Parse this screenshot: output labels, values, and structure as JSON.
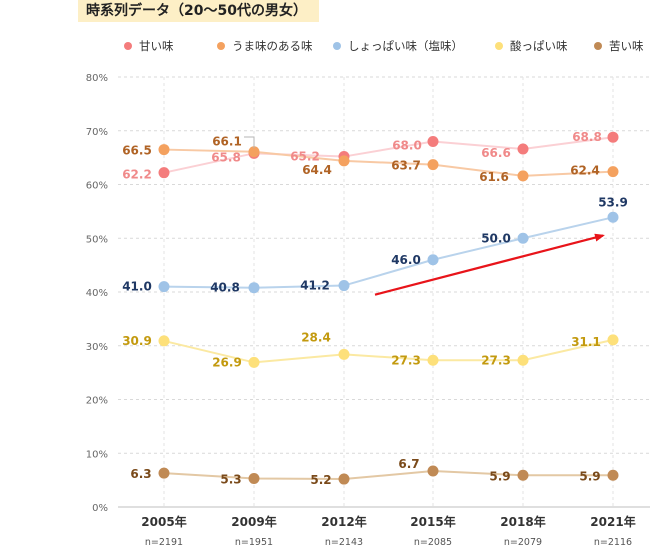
{
  "title": "時系列データ（20〜50代の男女）",
  "chart_data": {
    "type": "line",
    "categories": [
      "2005年",
      "2009年",
      "2012年",
      "2015年",
      "2018年",
      "2021年"
    ],
    "sample_sizes": [
      "n=2191",
      "n=1951",
      "n=2143",
      "n=2085",
      "n=2079",
      "n=2116"
    ],
    "ylim": [
      0,
      80
    ],
    "yticks": [
      "0%",
      "10%",
      "20%",
      "30%",
      "40%",
      "50%",
      "60%",
      "70%",
      "80%"
    ],
    "grid": true,
    "legend_position": "top",
    "series": [
      {
        "name": "甘い味",
        "values": [
          62.2,
          65.8,
          65.2,
          68.0,
          66.6,
          68.8
        ],
        "labels": [
          "62.2",
          "65.8",
          "65.2",
          "68.0",
          "66.6",
          "68.8"
        ],
        "color": "#f47c7c",
        "line_color": "#fbd0d4",
        "label_color": "#f08a8a"
      },
      {
        "name": "うま味のある味",
        "values": [
          66.5,
          66.1,
          64.4,
          63.7,
          61.6,
          62.4
        ],
        "labels": [
          "66.5",
          "66.1",
          "64.4",
          "63.7",
          "61.6",
          "62.4"
        ],
        "color": "#f4a15f",
        "line_color": "#f8c9a4",
        "label_color": "#b06325"
      },
      {
        "name": "しょっぱい味（塩味）",
        "values": [
          41.0,
          40.8,
          41.2,
          46.0,
          50.0,
          53.9
        ],
        "labels": [
          "41.0",
          "40.8",
          "41.2",
          "46.0",
          "50.0",
          "53.9"
        ],
        "color": "#9fc3e7",
        "line_color": "#b9d3ec",
        "label_color": "#1f3864"
      },
      {
        "name": "酸っぱい味",
        "values": [
          30.9,
          26.9,
          28.4,
          27.3,
          27.3,
          31.1
        ],
        "labels": [
          "30.9",
          "26.9",
          "28.4",
          "27.3",
          "27.3",
          "31.1"
        ],
        "color": "#fde07a",
        "line_color": "#fbe9a2",
        "label_color": "#c39a0f"
      },
      {
        "name": "苦い味",
        "values": [
          6.3,
          5.3,
          5.2,
          6.7,
          5.9,
          5.9
        ],
        "labels": [
          "6.3",
          "5.3",
          "5.2",
          "6.7",
          "5.9",
          "5.9"
        ],
        "color": "#c08a55",
        "line_color": "#e3c8a4",
        "label_color": "#7a4a1a"
      }
    ],
    "annotation": {
      "type": "arrow",
      "color": "#e8141a",
      "from": [
        "2012年",
        39.5
      ],
      "to": [
        "2021年",
        50.5
      ]
    }
  }
}
